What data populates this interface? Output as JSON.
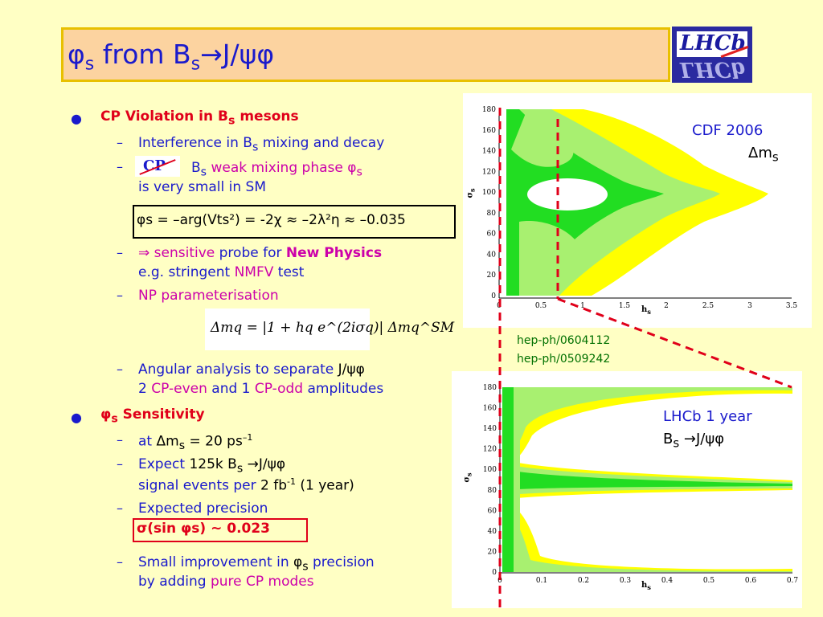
{
  "title": {
    "phi": "φ",
    "s1": "s",
    "from": " from B",
    "s2": "s",
    "arrow": "→",
    "rest": "J/ψφ"
  },
  "logo": {
    "text": "LHCb"
  },
  "bullets": {
    "b1": {
      "a": "CP Violation in B",
      "sub": "s",
      "b": " mesons"
    },
    "b1_1": {
      "a": "Interference in B",
      "sub": "s",
      "b": " mixing and decay"
    },
    "b1_2": {
      "cp": "CP",
      "a": "B",
      "sub": "s",
      "b": " weak mixing phase ",
      "phi": "φ",
      "sub2": "s",
      "line2": "is very small in SM"
    },
    "formula": "φs = –arg(Vts²) = -2χ ≈ –2λ²η ≈ –0.035",
    "b1_3": {
      "a": "⇒ sensitive",
      "b": " probe for ",
      "c": "New Physics",
      "line2a": "e.g. stringent ",
      "line2b": "NMFV",
      "line2c": " test"
    },
    "b1_4": {
      "a": "NP parameterisation"
    },
    "eq": "Δmq = |1 + hq e^(2iσq)| Δmq^SM",
    "b1_5": {
      "a": "Angular analysis to separate ",
      "b": "J/ψφ",
      "line2a": "2 ",
      "line2b": "CP-even",
      "line2c": " and 1 ",
      "line2d": "CP-odd",
      "line2e": " amplitudes"
    },
    "b2": {
      "phi": "φ",
      "sub": "s",
      "b": " Sensitivity"
    },
    "b2_1": {
      "a": "at ",
      "b": "Δm",
      "sub": "s",
      "c": " = 20 ps",
      "sup": "–1"
    },
    "b2_2": {
      "a": "Expect ",
      "b": "125k B",
      "sub": "s",
      "c": " →J/ψφ",
      "line2a": "signal events per ",
      "line2b": "2 fb",
      "sup": "-1",
      "line2c": " (1 year)"
    },
    "b2_3": {
      "a": "Expected precision",
      "line2": "σ(sin φs) ~ 0.023"
    },
    "b2_4": {
      "a": "Small improvement in ",
      "phi": "φ",
      "sub": "s",
      "b": " precision",
      "line2a": "by adding ",
      "line2b": "pure CP modes"
    }
  },
  "refs": {
    "r1": "hep-ph/0604112",
    "r2": "hep-ph/0509242"
  },
  "plot1": {
    "label1": "CDF 2006",
    "label2": "Δm",
    "label2sub": "s",
    "xlabel": "h",
    "xsub": "s",
    "ylabel": "σ",
    "ysub": "s",
    "xticks": [
      "0",
      "0.5",
      "1",
      "1.5",
      "2",
      "2.5",
      "3",
      "3.5"
    ],
    "yticks": [
      "0",
      "20",
      "40",
      "60",
      "80",
      "100",
      "120",
      "140",
      "160",
      "180"
    ]
  },
  "plot2": {
    "label1": "LHCb 1 year",
    "label2a": "B",
    "label2sub": "s",
    "label2b": " →J/ψφ",
    "xlabel": "h",
    "xsub": "s",
    "ylabel": "σ",
    "ysub": "s",
    "xticks": [
      "0",
      "0.1",
      "0.2",
      "0.3",
      "0.4",
      "0.5",
      "0.6",
      "0.7"
    ],
    "yticks": [
      "0",
      "20",
      "40",
      "60",
      "80",
      "100",
      "120",
      "140",
      "160",
      "180"
    ]
  },
  "colors": {
    "title": "#1a1acc",
    "accent_red": "#e0001a",
    "magenta": "#cc00aa",
    "contour_green": "#22dd22",
    "contour_lightgreen": "#a8f070",
    "contour_yellow": "#ffff00"
  }
}
